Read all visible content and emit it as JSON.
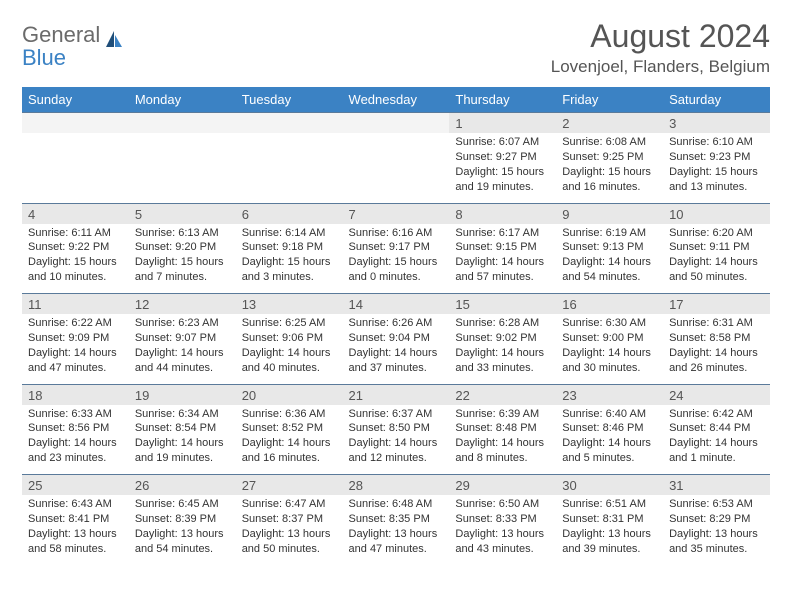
{
  "brand": {
    "general": "General",
    "blue": "Blue"
  },
  "title": "August 2024",
  "location": "Lovenjoel, Flanders, Belgium",
  "colors": {
    "header_bg": "#3b82c4",
    "daynum_bg": "#e8e8e8",
    "row_border": "#5a7a9a",
    "text": "#333333",
    "muted": "#555555"
  },
  "dow": [
    "Sunday",
    "Monday",
    "Tuesday",
    "Wednesday",
    "Thursday",
    "Friday",
    "Saturday"
  ],
  "weeks": [
    [
      null,
      null,
      null,
      null,
      {
        "n": "1",
        "sr": "6:07 AM",
        "ss": "9:27 PM",
        "dl": "15 hours and 19 minutes."
      },
      {
        "n": "2",
        "sr": "6:08 AM",
        "ss": "9:25 PM",
        "dl": "15 hours and 16 minutes."
      },
      {
        "n": "3",
        "sr": "6:10 AM",
        "ss": "9:23 PM",
        "dl": "15 hours and 13 minutes."
      }
    ],
    [
      {
        "n": "4",
        "sr": "6:11 AM",
        "ss": "9:22 PM",
        "dl": "15 hours and 10 minutes."
      },
      {
        "n": "5",
        "sr": "6:13 AM",
        "ss": "9:20 PM",
        "dl": "15 hours and 7 minutes."
      },
      {
        "n": "6",
        "sr": "6:14 AM",
        "ss": "9:18 PM",
        "dl": "15 hours and 3 minutes."
      },
      {
        "n": "7",
        "sr": "6:16 AM",
        "ss": "9:17 PM",
        "dl": "15 hours and 0 minutes."
      },
      {
        "n": "8",
        "sr": "6:17 AM",
        "ss": "9:15 PM",
        "dl": "14 hours and 57 minutes."
      },
      {
        "n": "9",
        "sr": "6:19 AM",
        "ss": "9:13 PM",
        "dl": "14 hours and 54 minutes."
      },
      {
        "n": "10",
        "sr": "6:20 AM",
        "ss": "9:11 PM",
        "dl": "14 hours and 50 minutes."
      }
    ],
    [
      {
        "n": "11",
        "sr": "6:22 AM",
        "ss": "9:09 PM",
        "dl": "14 hours and 47 minutes."
      },
      {
        "n": "12",
        "sr": "6:23 AM",
        "ss": "9:07 PM",
        "dl": "14 hours and 44 minutes."
      },
      {
        "n": "13",
        "sr": "6:25 AM",
        "ss": "9:06 PM",
        "dl": "14 hours and 40 minutes."
      },
      {
        "n": "14",
        "sr": "6:26 AM",
        "ss": "9:04 PM",
        "dl": "14 hours and 37 minutes."
      },
      {
        "n": "15",
        "sr": "6:28 AM",
        "ss": "9:02 PM",
        "dl": "14 hours and 33 minutes."
      },
      {
        "n": "16",
        "sr": "6:30 AM",
        "ss": "9:00 PM",
        "dl": "14 hours and 30 minutes."
      },
      {
        "n": "17",
        "sr": "6:31 AM",
        "ss": "8:58 PM",
        "dl": "14 hours and 26 minutes."
      }
    ],
    [
      {
        "n": "18",
        "sr": "6:33 AM",
        "ss": "8:56 PM",
        "dl": "14 hours and 23 minutes."
      },
      {
        "n": "19",
        "sr": "6:34 AM",
        "ss": "8:54 PM",
        "dl": "14 hours and 19 minutes."
      },
      {
        "n": "20",
        "sr": "6:36 AM",
        "ss": "8:52 PM",
        "dl": "14 hours and 16 minutes."
      },
      {
        "n": "21",
        "sr": "6:37 AM",
        "ss": "8:50 PM",
        "dl": "14 hours and 12 minutes."
      },
      {
        "n": "22",
        "sr": "6:39 AM",
        "ss": "8:48 PM",
        "dl": "14 hours and 8 minutes."
      },
      {
        "n": "23",
        "sr": "6:40 AM",
        "ss": "8:46 PM",
        "dl": "14 hours and 5 minutes."
      },
      {
        "n": "24",
        "sr": "6:42 AM",
        "ss": "8:44 PM",
        "dl": "14 hours and 1 minute."
      }
    ],
    [
      {
        "n": "25",
        "sr": "6:43 AM",
        "ss": "8:41 PM",
        "dl": "13 hours and 58 minutes."
      },
      {
        "n": "26",
        "sr": "6:45 AM",
        "ss": "8:39 PM",
        "dl": "13 hours and 54 minutes."
      },
      {
        "n": "27",
        "sr": "6:47 AM",
        "ss": "8:37 PM",
        "dl": "13 hours and 50 minutes."
      },
      {
        "n": "28",
        "sr": "6:48 AM",
        "ss": "8:35 PM",
        "dl": "13 hours and 47 minutes."
      },
      {
        "n": "29",
        "sr": "6:50 AM",
        "ss": "8:33 PM",
        "dl": "13 hours and 43 minutes."
      },
      {
        "n": "30",
        "sr": "6:51 AM",
        "ss": "8:31 PM",
        "dl": "13 hours and 39 minutes."
      },
      {
        "n": "31",
        "sr": "6:53 AM",
        "ss": "8:29 PM",
        "dl": "13 hours and 35 minutes."
      }
    ]
  ],
  "labels": {
    "sunrise": "Sunrise:",
    "sunset": "Sunset:",
    "daylight": "Daylight:"
  }
}
